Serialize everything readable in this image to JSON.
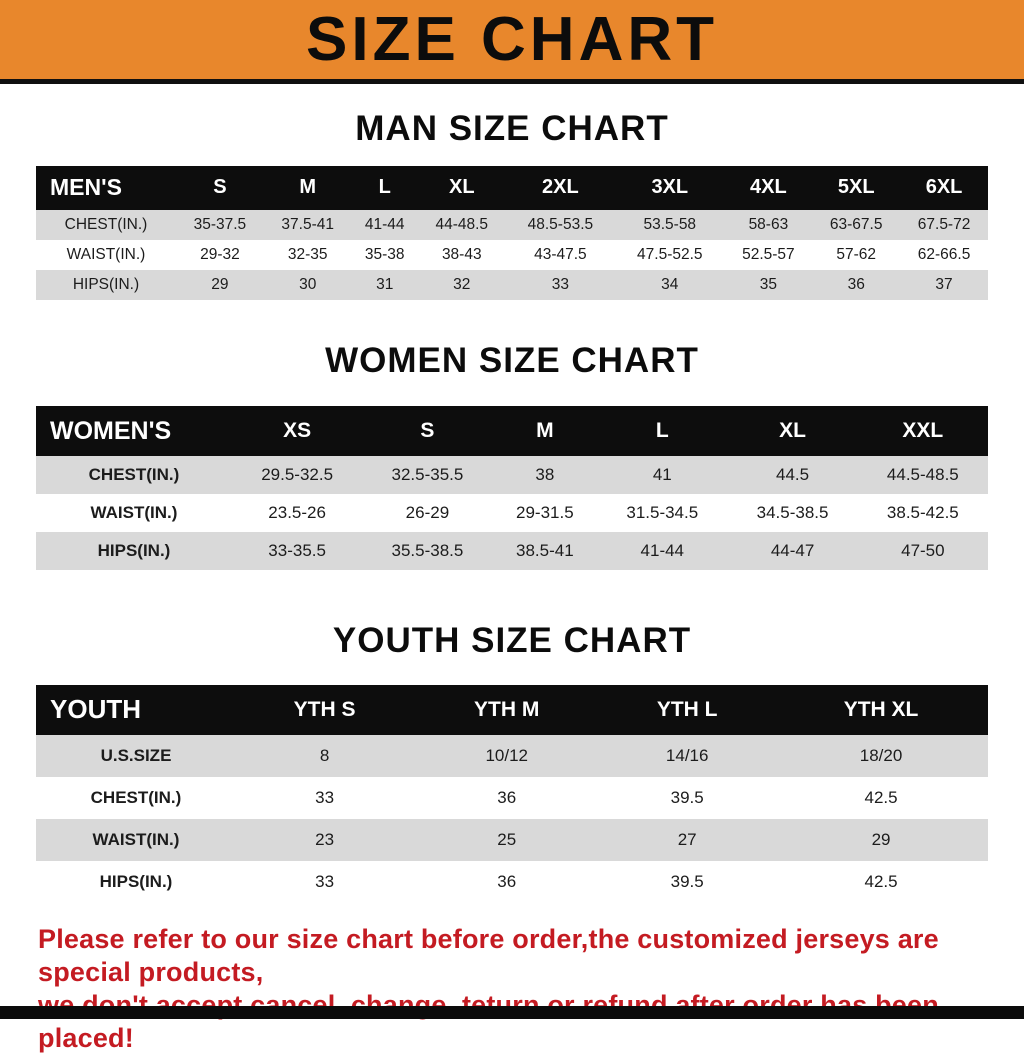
{
  "banner": {
    "title": "SIZE CHART",
    "bg_color": "#E8872C"
  },
  "sections": [
    {
      "id": "men",
      "title": "MAN SIZE CHART",
      "table": {
        "header": [
          "MEN'S",
          "S",
          "M",
          "L",
          "XL",
          "2XL",
          "3XL",
          "4XL",
          "5XL",
          "6XL"
        ],
        "rows": [
          [
            "CHEST(IN.)",
            "35-37.5",
            "37.5-41",
            "41-44",
            "44-48.5",
            "48.5-53.5",
            "53.5-58",
            "58-63",
            "63-67.5",
            "67.5-72"
          ],
          [
            "WAIST(IN.)",
            "29-32",
            "32-35",
            "35-38",
            "38-43",
            "43-47.5",
            "47.5-52.5",
            "52.5-57",
            "57-62",
            "62-66.5"
          ],
          [
            "HIPS(IN.)",
            "29",
            "30",
            "31",
            "32",
            "33",
            "34",
            "35",
            "36",
            "37"
          ]
        ]
      }
    },
    {
      "id": "women",
      "title": "WOMEN SIZE CHART",
      "table": {
        "header": [
          "WOMEN'S",
          "XS",
          "S",
          "M",
          "L",
          "XL",
          "XXL"
        ],
        "rows": [
          [
            "CHEST(IN.)",
            "29.5-32.5",
            "32.5-35.5",
            "38",
            "41",
            "44.5",
            "44.5-48.5"
          ],
          [
            "WAIST(IN.)",
            "23.5-26",
            "26-29",
            "29-31.5",
            "31.5-34.5",
            "34.5-38.5",
            "38.5-42.5"
          ],
          [
            "HIPS(IN.)",
            "33-35.5",
            "35.5-38.5",
            "38.5-41",
            "41-44",
            "44-47",
            "47-50"
          ]
        ]
      }
    },
    {
      "id": "youth",
      "title": "YOUTH SIZE CHART",
      "table": {
        "header": [
          "YOUTH",
          "YTH S",
          "YTH M",
          "YTH L",
          "YTH XL"
        ],
        "rows": [
          [
            "U.S.SIZE",
            "8",
            "10/12",
            "14/16",
            "18/20"
          ],
          [
            "CHEST(IN.)",
            "33",
            "36",
            "39.5",
            "42.5"
          ],
          [
            "WAIST(IN.)",
            "23",
            "25",
            "27",
            "29"
          ],
          [
            "HIPS(IN.)",
            "33",
            "36",
            "39.5",
            "42.5"
          ]
        ]
      }
    }
  ],
  "footer": {
    "lines": [
      "Please refer to our size chart before order,the customized jerseys are special products,",
      "we don't accept cancel, change, teturn or refund after order has been placed!"
    ],
    "color": "#C41B22"
  }
}
